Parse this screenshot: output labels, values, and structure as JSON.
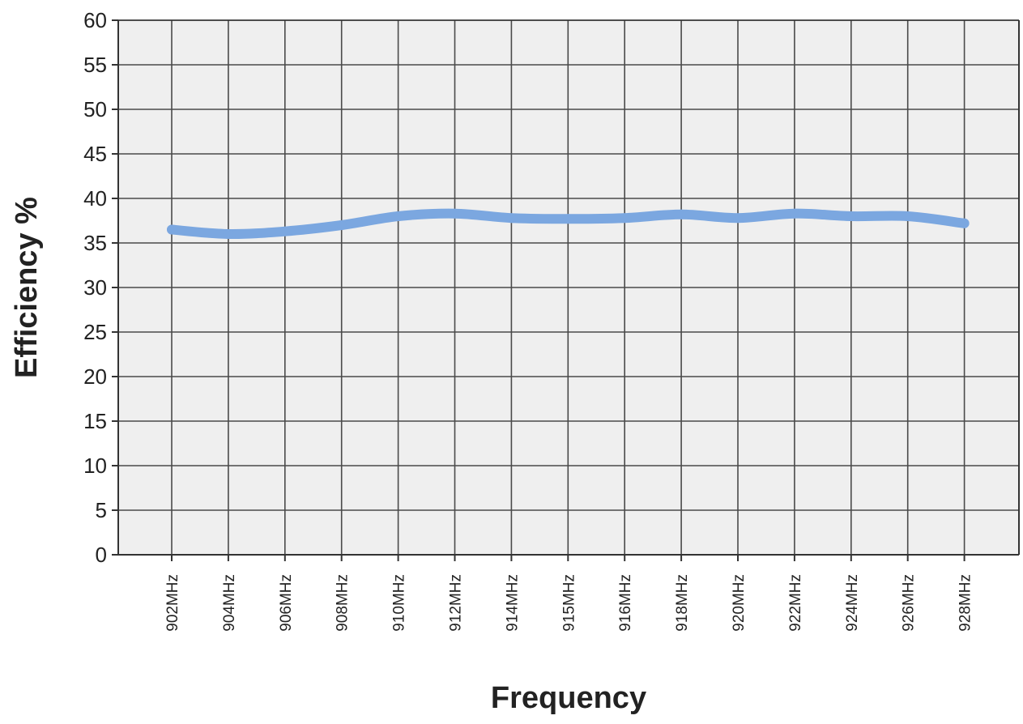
{
  "chart_data": {
    "type": "line",
    "title": "",
    "xlabel": "Frequency",
    "ylabel": "Efficiency %",
    "categories": [
      "902MHz",
      "904MHz",
      "906MHz",
      "908MHz",
      "910MHz",
      "912MHz",
      "914MHz",
      "915MHz",
      "916MHz",
      "918MHz",
      "920MHz",
      "922MHz",
      "924MHz",
      "926MHz",
      "928MHz"
    ],
    "series": [
      {
        "values": [
          36.5,
          36.0,
          36.3,
          37.0,
          38.0,
          38.3,
          37.8,
          37.7,
          37.8,
          38.2,
          37.8,
          38.3,
          38.0,
          38.0,
          37.2
        ],
        "color": "#7ba7e0"
      }
    ],
    "ylim": [
      0,
      60
    ],
    "yticks": [
      0,
      5,
      10,
      15,
      20,
      25,
      30,
      35,
      40,
      45,
      50,
      55,
      60
    ],
    "grid": true,
    "legend": "none",
    "plot_background": "#efefef",
    "grid_color": "#4a4a4a"
  }
}
